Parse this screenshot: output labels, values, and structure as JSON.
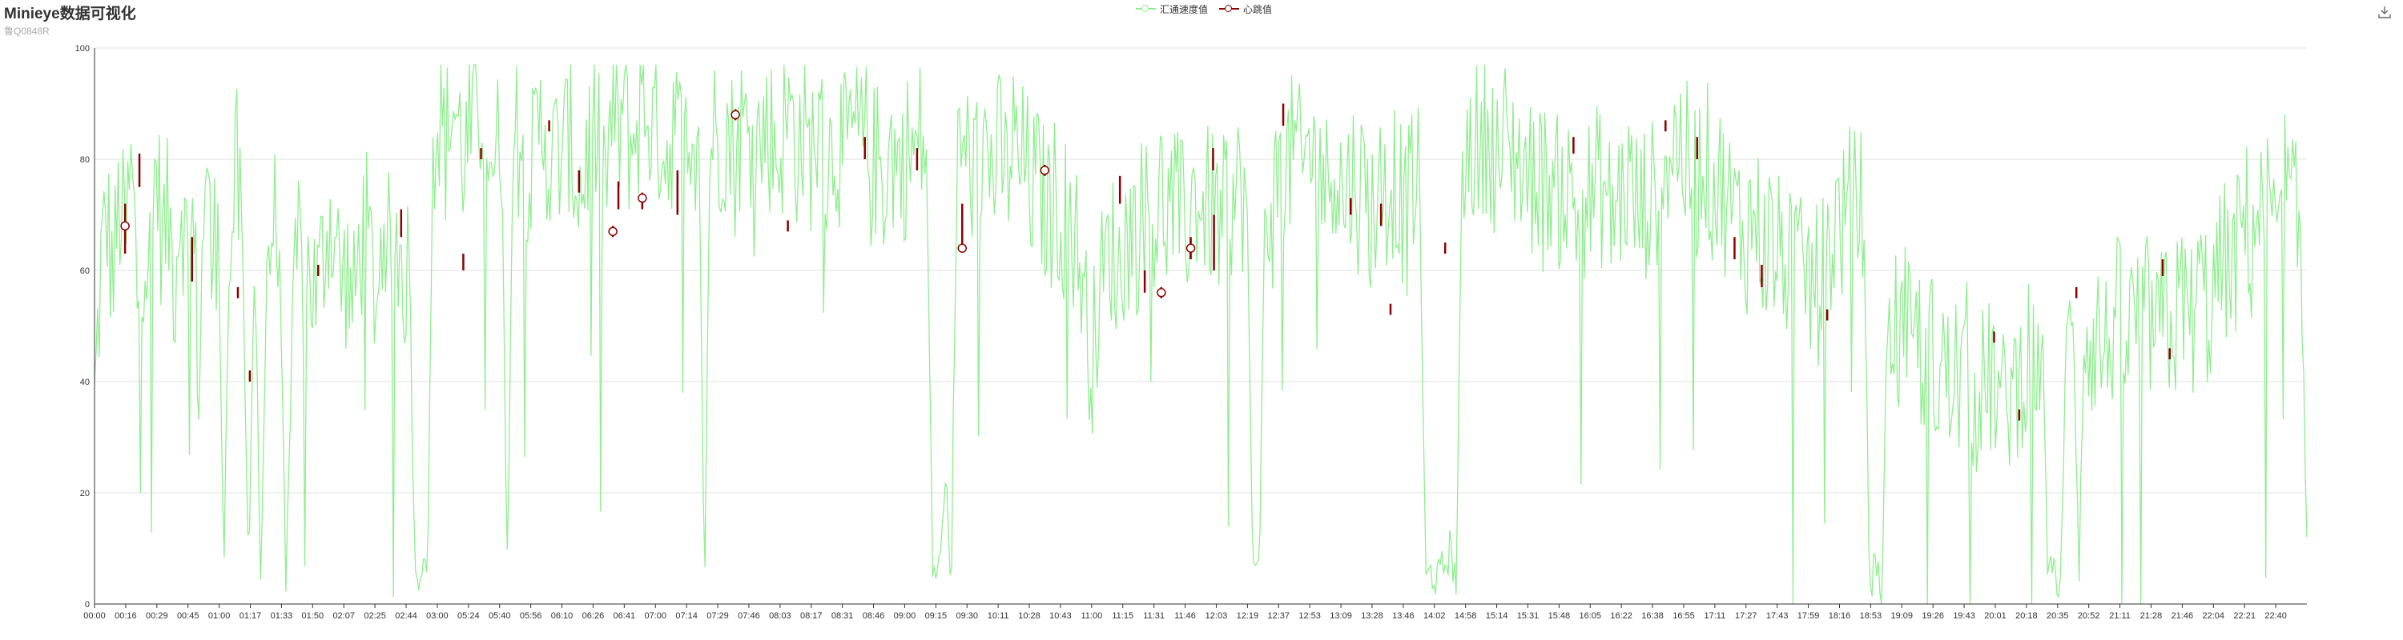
{
  "title": "Minieye数据可视化",
  "subtitle": "鲁Q0848R",
  "toolbox": {
    "icon": "download-icon"
  },
  "colors": {
    "speed": "#90ee90",
    "heartbeat": "#8b0000",
    "grid": "#e0e0e0",
    "axis": "#333333"
  },
  "chart_data": {
    "type": "line",
    "legend": [
      "汇通速度值",
      "心跳值"
    ],
    "legend_position": "top-center",
    "grid": true,
    "ylim": [
      0,
      100
    ],
    "y_ticks": [
      0,
      20,
      40,
      60,
      80,
      100
    ],
    "x_tick_labels": [
      "00:00",
      "00:16",
      "00:29",
      "00:45",
      "01:00",
      "01:17",
      "01:33",
      "01:50",
      "02:07",
      "02:25",
      "02:44",
      "03:00",
      "05:24",
      "05:40",
      "05:56",
      "06:10",
      "06:26",
      "06:41",
      "07:00",
      "07:14",
      "07:29",
      "07:46",
      "08:03",
      "08:17",
      "08:31",
      "08:46",
      "09:00",
      "09:15",
      "09:30",
      "10:11",
      "10:28",
      "10:43",
      "11:00",
      "11:15",
      "11:31",
      "11:46",
      "12:03",
      "12:19",
      "12:37",
      "12:53",
      "13:09",
      "13:28",
      "13:46",
      "14:02",
      "14:58",
      "15:14",
      "15:31",
      "15:48",
      "16:05",
      "16:22",
      "16:38",
      "16:55",
      "17:11",
      "17:27",
      "17:43",
      "17:59",
      "18:16",
      "18:53",
      "19:09",
      "19:26",
      "19:43",
      "20:01",
      "20:18",
      "20:35",
      "20:52",
      "21:11",
      "21:28",
      "21:46",
      "22:04",
      "22:21",
      "22:40"
    ],
    "series": [
      {
        "name": "汇通速度值",
        "kind": "line",
        "values": [
          35,
          60,
          70,
          58,
          72,
          65,
          78,
          55,
          66,
          60,
          80,
          65,
          70,
          58,
          75,
          62,
          68,
          40,
          82,
          60,
          70,
          5,
          62,
          80,
          60,
          0,
          60,
          0,
          58,
          70,
          62,
          0,
          40,
          65,
          58,
          60,
          55,
          62,
          70,
          66,
          58,
          60,
          52,
          64,
          68,
          60,
          55,
          72,
          60,
          66,
          58,
          62,
          0,
          4,
          0,
          85,
          88,
          82,
          90,
          86,
          80,
          84,
          88,
          90,
          84,
          78,
          86,
          0,
          82,
          85,
          80,
          78,
          84,
          88,
          76,
          82,
          80,
          85,
          78,
          74,
          82,
          86,
          80,
          76,
          88,
          84,
          90,
          82,
          86,
          90,
          88,
          84,
          86,
          80,
          88,
          82,
          90,
          86,
          84,
          0,
          88,
          82,
          86,
          84,
          80,
          86,
          84,
          88,
          82,
          86,
          84,
          80,
          86,
          88,
          82,
          84,
          80,
          86,
          82,
          78,
          84,
          82,
          80,
          86,
          82,
          84,
          78,
          80,
          76,
          82,
          80,
          78,
          82,
          80,
          84,
          80,
          0,
          2,
          20,
          0,
          78,
          82,
          80,
          76,
          84,
          80,
          78,
          82,
          76,
          84,
          78,
          80,
          74,
          76,
          72,
          70,
          74,
          68,
          72,
          66,
          62,
          50,
          45,
          55,
          60,
          65,
          58,
          64,
          68,
          66,
          70,
          72,
          68,
          74,
          70,
          72,
          70,
          68,
          72,
          74,
          70,
          72,
          70,
          68,
          74,
          72,
          76,
          70,
          0,
          2,
          72,
          70,
          76,
          78,
          80,
          82,
          76,
          84,
          78,
          80,
          74,
          82,
          76,
          72,
          78,
          74,
          76,
          70,
          72,
          76,
          74,
          78,
          72,
          70,
          76,
          74,
          0,
          2,
          0,
          3,
          6,
          0,
          80,
          82,
          84,
          80,
          86,
          82,
          78,
          84,
          80,
          82,
          78,
          76,
          80,
          74,
          78,
          72,
          76,
          74,
          72,
          70,
          74,
          72,
          76,
          74,
          70,
          72,
          74,
          76,
          72,
          70,
          74,
          72,
          78,
          80,
          82,
          84,
          80,
          78,
          76,
          82,
          78,
          74,
          76,
          72,
          70,
          68,
          66,
          70,
          68,
          64,
          66,
          62,
          64,
          60,
          62,
          58,
          60,
          56,
          58,
          62,
          66,
          70,
          68,
          72,
          70,
          74,
          0,
          2,
          0,
          48,
          52,
          46,
          50,
          44,
          48,
          42,
          46,
          40,
          44,
          38,
          42,
          40,
          44,
          36,
          40,
          38,
          42,
          36,
          34,
          40,
          38,
          44,
          46,
          42,
          48,
          0,
          2,
          0,
          44,
          50,
          0,
          52,
          46,
          50,
          44,
          48,
          52,
          50,
          46,
          54,
          48,
          52,
          50,
          46,
          54,
          48,
          52,
          56,
          50,
          54,
          58,
          52,
          56,
          60,
          62,
          58,
          66,
          70,
          64,
          72,
          68,
          74,
          60,
          78,
          72,
          70,
          62,
          15
        ]
      },
      {
        "name": "心跳值",
        "kind": "marks",
        "points": [
          {
            "x": 0.0138,
            "y": 68,
            "bar": [
              63,
              72
            ],
            "marker": true
          },
          {
            "x": 0.0203,
            "y": 78,
            "bar": [
              75,
              81
            ],
            "marker": false
          },
          {
            "x": 0.0441,
            "y": 62,
            "bar": [
              58,
              66
            ],
            "marker": false
          },
          {
            "x": 0.0648,
            "y": 56,
            "bar": [
              55,
              57
            ],
            "marker": false
          },
          {
            "x": 0.0702,
            "y": 41,
            "bar": [
              40,
              42
            ],
            "marker": false
          },
          {
            "x": 0.1011,
            "y": 60,
            "bar": [
              59,
              61
            ],
            "marker": false
          },
          {
            "x": 0.1386,
            "y": 68,
            "bar": [
              66,
              71
            ],
            "marker": false
          },
          {
            "x": 0.1667,
            "y": 62,
            "bar": [
              60,
              63
            ],
            "marker": false
          },
          {
            "x": 0.1747,
            "y": 81,
            "bar": [
              80,
              82
            ],
            "marker": false
          },
          {
            "x": 0.2055,
            "y": 86,
            "bar": [
              85,
              87
            ],
            "marker": false
          },
          {
            "x": 0.219,
            "y": 76,
            "bar": [
              74,
              78
            ],
            "marker": false
          },
          {
            "x": 0.2343,
            "y": 67,
            "bar": [
              66,
              68
            ],
            "marker": true
          },
          {
            "x": 0.2368,
            "y": 74,
            "bar": [
              71,
              76
            ],
            "marker": false
          },
          {
            "x": 0.2476,
            "y": 73,
            "bar": [
              71,
              74
            ],
            "marker": true
          },
          {
            "x": 0.2635,
            "y": 74,
            "bar": [
              70,
              78
            ],
            "marker": false
          },
          {
            "x": 0.2897,
            "y": 88,
            "bar": [
              87,
              89
            ],
            "marker": true
          },
          {
            "x": 0.3134,
            "y": 68,
            "bar": [
              67,
              69
            ],
            "marker": false
          },
          {
            "x": 0.3482,
            "y": 82,
            "bar": [
              80,
              84
            ],
            "marker": false
          },
          {
            "x": 0.3718,
            "y": 80,
            "bar": [
              78,
              82
            ],
            "marker": false
          },
          {
            "x": 0.3922,
            "y": 64,
            "bar": [
              64,
              72
            ],
            "marker": true
          },
          {
            "x": 0.4295,
            "y": 78,
            "bar": [
              77,
              79
            ],
            "marker": true
          },
          {
            "x": 0.4635,
            "y": 75,
            "bar": [
              72,
              77
            ],
            "marker": false
          },
          {
            "x": 0.4747,
            "y": 58,
            "bar": [
              56,
              60
            ],
            "marker": false
          },
          {
            "x": 0.4822,
            "y": 56,
            "bar": [
              55,
              57
            ],
            "marker": true
          },
          {
            "x": 0.4955,
            "y": 64,
            "bar": [
              62,
              66
            ],
            "marker": true
          },
          {
            "x": 0.5056,
            "y": 80,
            "bar": [
              78,
              82
            ],
            "marker": false
          },
          {
            "x": 0.506,
            "y": 65,
            "bar": [
              60,
              70
            ],
            "marker": false
          },
          {
            "x": 0.5373,
            "y": 88,
            "bar": [
              86,
              90
            ],
            "marker": false
          },
          {
            "x": 0.5678,
            "y": 71,
            "bar": [
              70,
              73
            ],
            "marker": false
          },
          {
            "x": 0.5815,
            "y": 70,
            "bar": [
              68,
              72
            ],
            "marker": false
          },
          {
            "x": 0.5858,
            "y": 53,
            "bar": [
              52,
              54
            ],
            "marker": false
          },
          {
            "x": 0.6105,
            "y": 64,
            "bar": [
              63,
              65
            ],
            "marker": false
          },
          {
            "x": 0.6685,
            "y": 82,
            "bar": [
              81,
              84
            ],
            "marker": false
          },
          {
            "x": 0.7101,
            "y": 86,
            "bar": [
              85,
              87
            ],
            "marker": false
          },
          {
            "x": 0.7244,
            "y": 82,
            "bar": [
              80,
              84
            ],
            "marker": false
          },
          {
            "x": 0.7413,
            "y": 64,
            "bar": [
              62,
              66
            ],
            "marker": false
          },
          {
            "x": 0.7536,
            "y": 59,
            "bar": [
              57,
              61
            ],
            "marker": false
          },
          {
            "x": 0.7832,
            "y": 52,
            "bar": [
              51,
              53
            ],
            "marker": false
          },
          {
            "x": 0.8586,
            "y": 48,
            "bar": [
              47,
              49
            ],
            "marker": false
          },
          {
            "x": 0.87,
            "y": 34,
            "bar": [
              33,
              35
            ],
            "marker": false
          },
          {
            "x": 0.8958,
            "y": 56,
            "bar": [
              55,
              57
            ],
            "marker": false
          },
          {
            "x": 0.9348,
            "y": 60,
            "bar": [
              59,
              62
            ],
            "marker": false
          },
          {
            "x": 0.938,
            "y": 45,
            "bar": [
              44,
              46
            ],
            "marker": false
          }
        ]
      }
    ]
  }
}
